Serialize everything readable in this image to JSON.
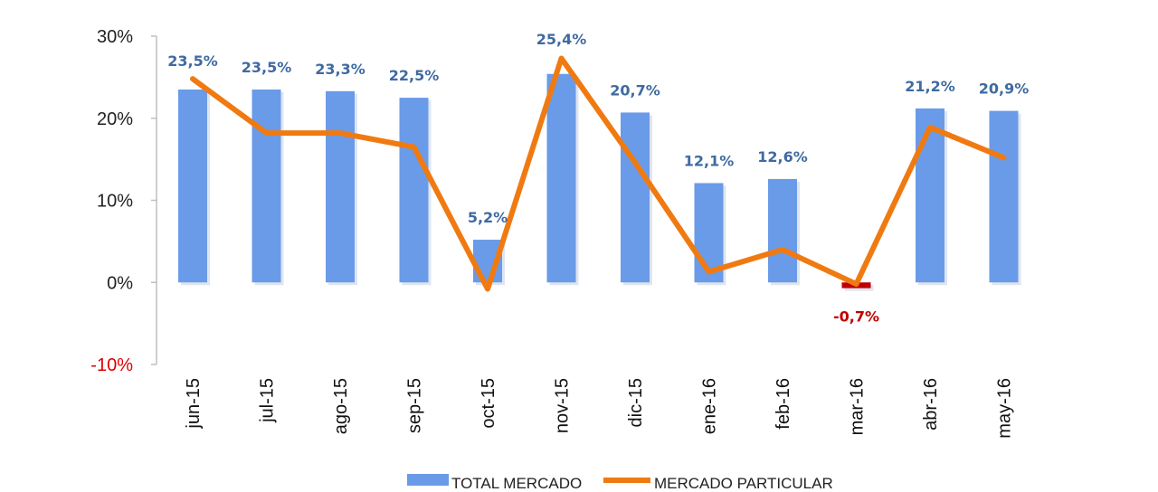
{
  "chart_data": {
    "type": "bar",
    "title": "",
    "xlabel": "",
    "ylabel": "",
    "ylim": [
      -10,
      30
    ],
    "yticks": [
      30,
      20,
      10,
      0,
      -10
    ],
    "ytick_labels": [
      "30%",
      "20%",
      "10%",
      "0%",
      "-10%"
    ],
    "categories": [
      "jun-15",
      "jul-15",
      "ago-15",
      "sep-15",
      "oct-15",
      "nov-15",
      "dic-15",
      "ene-16",
      "feb-16",
      "mar-16",
      "abr-16",
      "may-16"
    ],
    "series": [
      {
        "name": "TOTAL MERCADO",
        "kind": "bar",
        "color": "#6a9be8",
        "negative_color": "#c00000",
        "values": [
          23.5,
          23.5,
          23.3,
          22.5,
          5.2,
          25.4,
          20.7,
          12.1,
          12.6,
          -0.7,
          21.2,
          20.9
        ],
        "labels": [
          "23,5%",
          "23,5%",
          "23,3%",
          "22,5%",
          "5,2%",
          "25,4%",
          "20,7%",
          "12,1%",
          "12,6%",
          "-0,7%",
          "21,2%",
          "20,9%"
        ]
      },
      {
        "name": "MERCADO PARTICULAR",
        "kind": "line",
        "color": "#f07a12",
        "values": [
          24.8,
          18.2,
          18.2,
          16.5,
          -0.8,
          27.3,
          14.6,
          1.3,
          4.0,
          -0.2,
          18.9,
          15.2
        ]
      }
    ],
    "legend": "bottom-center",
    "grid": false
  }
}
